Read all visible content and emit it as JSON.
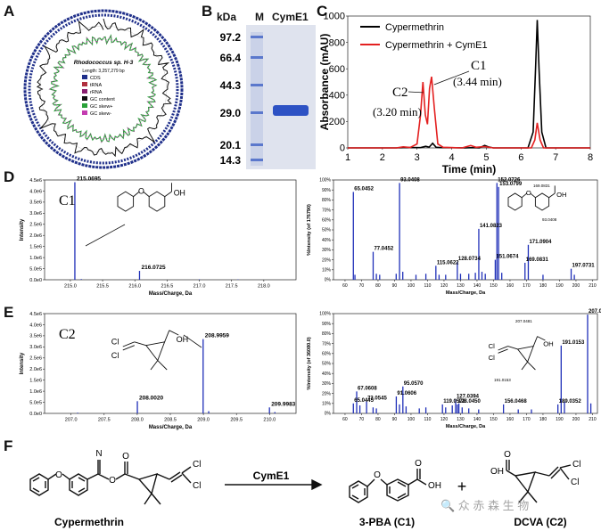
{
  "panels": {
    "a": "A",
    "b": "B",
    "c": "C",
    "d": "D",
    "e": "E",
    "f": "F"
  },
  "panel_a": {
    "organism": "Rhodococcus sp. H-3",
    "length": "Length: 3,257,279 bp",
    "legend": [
      "CDS",
      "tRNA",
      "rRNA",
      "GC content",
      "GC skew+",
      "GC skew-"
    ],
    "legend_colors": [
      "#1f2f8a",
      "#b03040",
      "#8a2070",
      "#111111",
      "#2aa23a",
      "#c33bb0"
    ]
  },
  "panel_b": {
    "unit": "kDa",
    "lane_labels": [
      "M",
      "CymE1"
    ],
    "markers": [
      "97.2",
      "66.4",
      "44.3",
      "29.0",
      "20.1",
      "14.3"
    ]
  },
  "chart_data": [
    {
      "type": "line",
      "panel": "C",
      "xlabel": "Time (min)",
      "ylabel": "Absorbance (mAU)",
      "xlim": [
        1,
        8
      ],
      "ylim": [
        0,
        1000
      ],
      "xticks": [
        "1",
        "2",
        "3",
        "4",
        "5",
        "6",
        "7",
        "8"
      ],
      "yticks": [
        "0",
        "200",
        "400",
        "600",
        "800",
        "1000"
      ],
      "legend": "top-right",
      "series": [
        {
          "name": "Cypermethrin",
          "color": "#000000",
          "points": [
            [
              1,
              0
            ],
            [
              2.4,
              0
            ],
            [
              2.7,
              3
            ],
            [
              3.1,
              2
            ],
            [
              3.25,
              12
            ],
            [
              3.35,
              6
            ],
            [
              3.45,
              35
            ],
            [
              3.55,
              5
            ],
            [
              3.7,
              2
            ],
            [
              4.4,
              0
            ],
            [
              4.6,
              2
            ],
            [
              4.8,
              0
            ],
            [
              4.95,
              18
            ],
            [
              5.05,
              8
            ],
            [
              5.2,
              0
            ],
            [
              6.2,
              0
            ],
            [
              6.35,
              120
            ],
            [
              6.42,
              600
            ],
            [
              6.47,
              970
            ],
            [
              6.52,
              600
            ],
            [
              6.6,
              120
            ],
            [
              6.72,
              0
            ],
            [
              8,
              0
            ]
          ]
        },
        {
          "name": "Cypermethrin + CymE1",
          "color": "#e32020",
          "points": [
            [
              1,
              0
            ],
            [
              2.4,
              0
            ],
            [
              2.6,
              8
            ],
            [
              2.8,
              3
            ],
            [
              3.0,
              30
            ],
            [
              3.1,
              250
            ],
            [
              3.17,
              500
            ],
            [
              3.24,
              250
            ],
            [
              3.3,
              180
            ],
            [
              3.36,
              450
            ],
            [
              3.42,
              540
            ],
            [
              3.5,
              300
            ],
            [
              3.6,
              30
            ],
            [
              3.75,
              5
            ],
            [
              4.3,
              0
            ],
            [
              4.55,
              18
            ],
            [
              4.7,
              5
            ],
            [
              4.95,
              10
            ],
            [
              5.2,
              0
            ],
            [
              6.3,
              0
            ],
            [
              6.4,
              60
            ],
            [
              6.47,
              190
            ],
            [
              6.55,
              60
            ],
            [
              6.65,
              0
            ],
            [
              8,
              0
            ]
          ]
        }
      ],
      "annotations": {
        "c1": "C1",
        "c1_time": "(3.44 min)",
        "c2": "C2",
        "c2_time": "(3.20 min)"
      }
    },
    {
      "type": "bar",
      "panel": "D-left",
      "label": "C1",
      "xlabel": "Mass/Charge, Da",
      "ylabel": "Intensity",
      "xlim": [
        214.6,
        218.5
      ],
      "ylim": [
        0,
        4500000
      ],
      "xticks": [
        "215.0",
        "215.5",
        "216.0",
        "216.5",
        "217.0",
        "217.5",
        "218.0"
      ],
      "yticks": [
        "0.0e0",
        "5.0e5",
        "1.0e6",
        "1.5e6",
        "2.0e6",
        "2.5e6",
        "3.0e6",
        "3.5e6",
        "4.0e6",
        "4.5e6"
      ],
      "peaks": [
        [
          215.0695,
          4400000
        ],
        [
          215.17,
          30000
        ],
        [
          216.0725,
          400000
        ],
        [
          217.0,
          20000
        ],
        [
          217.6,
          15000
        ]
      ],
      "peak_labels": [
        {
          "x": 215.0695,
          "y": 4400000,
          "text": "215.0695"
        },
        {
          "x": 216.0725,
          "y": 400000,
          "text": "216.0725"
        }
      ]
    },
    {
      "type": "bar",
      "panel": "D-right",
      "xlabel": "Mass/Charge, Da",
      "ylabel": "%Intensity (of 176790)",
      "xlim": [
        53,
        213
      ],
      "ylim": [
        0,
        100
      ],
      "xticks": [
        "60",
        "70",
        "80",
        "90",
        "100",
        "110",
        "120",
        "130",
        "140",
        "150",
        "160",
        "170",
        "180",
        "190",
        "200",
        "210"
      ],
      "yticks": [
        "0%",
        "10%",
        "20%",
        "30%",
        "40%",
        "50%",
        "60%",
        "70%",
        "80%",
        "90%",
        "100%"
      ],
      "peaks": [
        [
          65.0452,
          88
        ],
        [
          66,
          5
        ],
        [
          77.0452,
          28
        ],
        [
          79,
          6
        ],
        [
          81,
          5
        ],
        [
          91,
          6
        ],
        [
          93.0408,
          97
        ],
        [
          95,
          8
        ],
        [
          103,
          5
        ],
        [
          109,
          6
        ],
        [
          115.0622,
          14
        ],
        [
          117,
          5
        ],
        [
          121,
          5
        ],
        [
          128.0734,
          18
        ],
        [
          130,
          6
        ],
        [
          135,
          6
        ],
        [
          139,
          7
        ],
        [
          141.0823,
          51
        ],
        [
          143,
          8
        ],
        [
          145,
          6
        ],
        [
          151.0674,
          20
        ],
        [
          152.0726,
          97
        ],
        [
          153.0799,
          93
        ],
        [
          155,
          7
        ],
        [
          169.0831,
          17
        ],
        [
          171.0904,
          35
        ],
        [
          180,
          5
        ],
        [
          197.0731,
          11
        ],
        [
          199,
          5
        ],
        [
          214,
          9
        ]
      ],
      "peak_labels": [
        {
          "x": 65.0452,
          "y": 88,
          "text": "65.0452"
        },
        {
          "x": 93.0408,
          "y": 97,
          "text": "93.0408"
        },
        {
          "x": 152.0726,
          "y": 97,
          "text": "152.0726"
        },
        {
          "x": 153.0799,
          "y": 93,
          "text": "153.0799"
        },
        {
          "x": 141.0823,
          "y": 51,
          "text": "141.0823"
        },
        {
          "x": 77.0452,
          "y": 28,
          "text": "77.0452"
        },
        {
          "x": 128.0734,
          "y": 18,
          "text": "128.0734"
        },
        {
          "x": 115.0622,
          "y": 14,
          "text": "115.0622"
        },
        {
          "x": 151.0674,
          "y": 20,
          "text": "151.0674"
        },
        {
          "x": 171.0904,
          "y": 35,
          "text": "171.0904"
        },
        {
          "x": 169.0831,
          "y": 17,
          "text": "169.0831"
        },
        {
          "x": 197.0731,
          "y": 11,
          "text": "197.0731"
        }
      ],
      "inset_labels": [
        "169.0831",
        "93.0408"
      ]
    },
    {
      "type": "bar",
      "panel": "E-left",
      "label": "C2",
      "xlabel": "Mass/Charge, Da",
      "ylabel": "Intensity",
      "xlim": [
        206.6,
        210.4
      ],
      "ylim": [
        0,
        4500000
      ],
      "xticks": [
        "207.0",
        "207.5",
        "208.0",
        "208.5",
        "209.0",
        "209.5",
        "210.0"
      ],
      "yticks": [
        "0.0e0",
        "5.0e5",
        "1.0e6",
        "1.5e6",
        "2.0e6",
        "2.5e6",
        "3.0e6",
        "3.5e6",
        "4.0e6",
        "4.5e6"
      ],
      "peaks": [
        [
          207.1,
          30000
        ],
        [
          208.002,
          550000
        ],
        [
          208.9959,
          3350000
        ],
        [
          209.08,
          100000
        ],
        [
          209.9983,
          270000
        ],
        [
          210.08,
          60000
        ]
      ],
      "peak_labels": [
        {
          "x": 208.002,
          "y": 550000,
          "text": "208.0020"
        },
        {
          "x": 208.9959,
          "y": 3350000,
          "text": "208.9959"
        },
        {
          "x": 209.9983,
          "y": 270000,
          "text": "209.9983"
        }
      ]
    },
    {
      "type": "bar",
      "panel": "E-right",
      "xlabel": "Mass/Charge, Da",
      "ylabel": "%Intensity (of 36080.0)",
      "xlim": [
        53,
        213
      ],
      "ylim": [
        0,
        100
      ],
      "xticks": [
        "60",
        "70",
        "80",
        "90",
        "100",
        "110",
        "120",
        "130",
        "140",
        "150",
        "160",
        "170",
        "180",
        "190",
        "200",
        "210"
      ],
      "yticks": [
        "0%",
        "10%",
        "20%",
        "30%",
        "40%",
        "50%",
        "60%",
        "70%",
        "80%",
        "90%",
        "100%"
      ],
      "peaks": [
        [
          65.0445,
          10
        ],
        [
          67.0608,
          22
        ],
        [
          69,
          8
        ],
        [
          73.0545,
          12
        ],
        [
          77,
          6
        ],
        [
          79,
          5
        ],
        [
          91.0606,
          17
        ],
        [
          93,
          9
        ],
        [
          95.057,
          27
        ],
        [
          97,
          7
        ],
        [
          105,
          5
        ],
        [
          109,
          6
        ],
        [
          119.0572,
          9
        ],
        [
          121,
          6
        ],
        [
          125,
          8
        ],
        [
          127.0394,
          14
        ],
        [
          128.045,
          9
        ],
        [
          129,
          10
        ],
        [
          131,
          6
        ],
        [
          135,
          5
        ],
        [
          141,
          4
        ],
        [
          156.0468,
          9
        ],
        [
          165,
          4
        ],
        [
          173,
          4
        ],
        [
          189.0352,
          9
        ],
        [
          191.0153,
          68
        ],
        [
          193,
          12
        ],
        [
          207.0481,
          99
        ],
        [
          209,
          10
        ]
      ],
      "peak_labels": [
        {
          "x": 207.0481,
          "y": 99,
          "text": "207.0481"
        },
        {
          "x": 191.0153,
          "y": 68,
          "text": "191.0153"
        },
        {
          "x": 95.057,
          "y": 27,
          "text": "95.0570"
        },
        {
          "x": 67.0608,
          "y": 22,
          "text": "67.0608"
        },
        {
          "x": 91.0606,
          "y": 17,
          "text": "91.0606"
        },
        {
          "x": 127.0394,
          "y": 14,
          "text": "127.0394"
        },
        {
          "x": 65.0445,
          "y": 10,
          "text": "65.0445"
        },
        {
          "x": 73.0545,
          "y": 12,
          "text": "73.0545"
        },
        {
          "x": 119.0572,
          "y": 9,
          "text": "119.0572"
        },
        {
          "x": 128.045,
          "y": 9,
          "text": "128.0450"
        },
        {
          "x": 156.0468,
          "y": 9,
          "text": "156.0468"
        },
        {
          "x": 189.0352,
          "y": 9,
          "text": "189.0352"
        }
      ],
      "inset_labels": [
        "207.0481",
        "191.0153"
      ]
    }
  ],
  "panel_f": {
    "substrate": "Cypermethrin",
    "enzyme": "CymE1",
    "product1": "3-PBA (C1)",
    "product2": "DCVA (C2)",
    "plus": "+",
    "watermark": "🔍 众 赤 森 生 物"
  },
  "chem": {
    "oh": "OH",
    "o": "O",
    "cl": "Cl",
    "n": "N"
  }
}
